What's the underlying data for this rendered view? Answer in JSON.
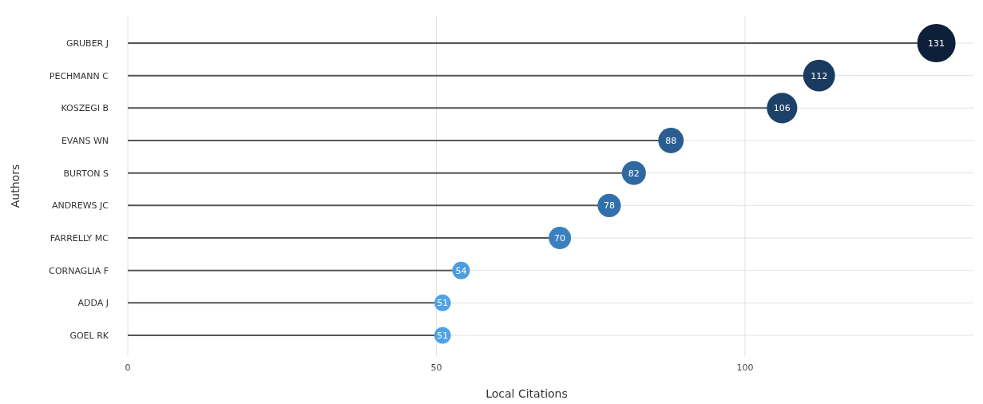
{
  "chart_data": {
    "type": "lollipop",
    "orientation": "horizontal",
    "xlabel": "Local Citations",
    "ylabel": "Authors",
    "categories": [
      "GRUBER J",
      "PECHMANN C",
      "KOSZEGI B",
      "EVANS WN",
      "BURTON S",
      "ANDREWS JC",
      "FARRELLY MC",
      "CORNAGLIA F",
      "ADDA J",
      "GOEL RK"
    ],
    "values": [
      131,
      112,
      106,
      88,
      82,
      78,
      70,
      54,
      51,
      51
    ],
    "sizes": [
      1,
      0.69,
      0.63,
      0.44,
      0.39,
      0.37,
      0.34,
      0.21,
      0.19,
      0.19
    ],
    "colors": [
      "#0e1f3a",
      "#1a3a5f",
      "#1e4169",
      "#2a5e91",
      "#2e69a2",
      "#3170ac",
      "#3a80c1",
      "#4a9ddf",
      "#4ea2e5",
      "#4ea2e5"
    ],
    "xlim": [
      0,
      137
    ],
    "xticks": [
      0,
      50,
      100
    ],
    "grid": true,
    "data_labels": true,
    "marker": "circle"
  }
}
